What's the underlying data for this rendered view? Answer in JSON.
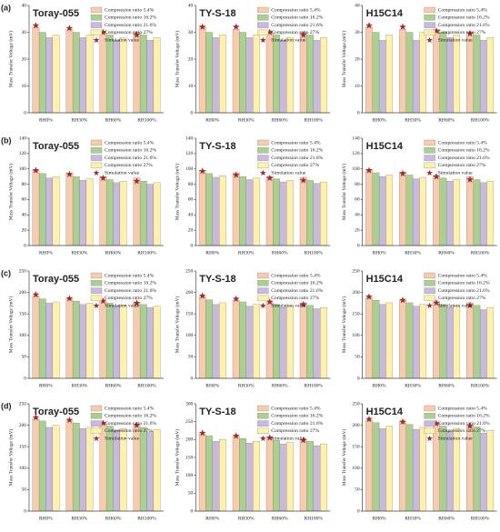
{
  "chart_data": [
    {
      "type": "bar",
      "panel_label": "(a)",
      "title": "Toray-055",
      "y_label": "Mass Transfer Voltage (mV)",
      "categories": [
        "RH0%",
        "RH30%",
        "RH60%",
        "RH100%"
      ],
      "ylim": [
        0,
        40
      ],
      "yticks": [
        0,
        10,
        20,
        30,
        40
      ],
      "series": [
        {
          "name": "Compression ratio 5.4%",
          "color": "#f8cbad",
          "values": [
            32,
            31,
            30,
            30
          ]
        },
        {
          "name": "Compression ratio 16.2%",
          "color": "#a9d18e",
          "values": [
            30,
            30,
            29,
            29
          ]
        },
        {
          "name": "Compression ratio 21.6%",
          "color": "#c9b8e0",
          "values": [
            28,
            28,
            27,
            27
          ]
        },
        {
          "name": "Compression ratio 27%",
          "color": "#fff2a8",
          "values": [
            29,
            29,
            28,
            28
          ]
        },
        {
          "name": "Simulation value",
          "color": "#a52a2a",
          "marker": "star",
          "values": [
            32.5,
            31.5,
            30,
            29
          ]
        }
      ]
    },
    {
      "type": "bar",
      "title": "TY-S-18",
      "y_label": "Mass Transfer Voltage (mV)",
      "categories": [
        "RH0%",
        "RH30%",
        "RH60%",
        "RH100%"
      ],
      "ylim": [
        0,
        40
      ],
      "yticks": [
        0,
        10,
        20,
        30,
        40
      ],
      "series": [
        {
          "name": "Compression ratio 5.4%",
          "color": "#f8cbad",
          "values": [
            32,
            31,
            30,
            30
          ]
        },
        {
          "name": "Compression ratio 16.2%",
          "color": "#a9d18e",
          "values": [
            30,
            30,
            29,
            29
          ]
        },
        {
          "name": "Compression ratio 21.6%",
          "color": "#c9b8e0",
          "values": [
            28,
            28,
            27,
            27
          ]
        },
        {
          "name": "Compression ratio 27%",
          "color": "#fff2a8",
          "values": [
            29,
            29,
            28,
            28
          ]
        },
        {
          "name": "Simulation value",
          "color": "#a52a2a",
          "marker": "star",
          "values": [
            32,
            32,
            30,
            29
          ]
        }
      ]
    },
    {
      "type": "bar",
      "title": "H15C14",
      "y_label": "Mass Transfer Voltage (mV)",
      "categories": [
        "RH0%",
        "RH30%",
        "RH60%",
        "RH100%"
      ],
      "ylim": [
        0,
        40
      ],
      "yticks": [
        0,
        10,
        20,
        30,
        40
      ],
      "series": [
        {
          "name": "Compression ratio 5.4%",
          "color": "#f8cbad",
          "values": [
            32,
            31,
            31,
            30
          ]
        },
        {
          "name": "Compression ratio 16.2%",
          "color": "#a9d18e",
          "values": [
            30,
            30,
            30,
            29
          ]
        },
        {
          "name": "Compression ratio 21.6%",
          "color": "#c9b8e0",
          "values": [
            27,
            27,
            28,
            27
          ]
        },
        {
          "name": "Compression ratio 27%",
          "color": "#fff2a8",
          "values": [
            29,
            30,
            29,
            28
          ]
        },
        {
          "name": "Simulation value",
          "color": "#a52a2a",
          "marker": "star",
          "values": [
            32.5,
            32,
            30.5,
            29.5
          ]
        }
      ]
    },
    {
      "type": "bar",
      "panel_label": "(b)",
      "title": "Toray-055",
      "y_label": "Mass Transfer Voltage (mV)",
      "categories": [
        "RH0%",
        "RH30%",
        "RH60%",
        "RH100%"
      ],
      "ylim": [
        0,
        140
      ],
      "yticks": [
        0,
        20,
        40,
        60,
        80,
        100,
        120,
        140
      ],
      "series": [
        {
          "name": "Compression ratio 5.4%",
          "color": "#f8cbad",
          "values": [
            98,
            94,
            90,
            88
          ]
        },
        {
          "name": "Compression ratio 16.2%",
          "color": "#a9d18e",
          "values": [
            94,
            90,
            86,
            84
          ]
        },
        {
          "name": "Compression ratio 21.6%",
          "color": "#c9b8e0",
          "values": [
            88,
            85,
            82,
            80
          ]
        },
        {
          "name": "Compression ratio 27%",
          "color": "#fff2a8",
          "values": [
            90,
            87,
            84,
            82
          ]
        },
        {
          "name": "Simulation value",
          "color": "#a52a2a",
          "marker": "star",
          "values": [
            98,
            93,
            88,
            84
          ]
        }
      ]
    },
    {
      "type": "bar",
      "title": "TY-S-18",
      "y_label": "Mass Transfer Voltage (mV)",
      "categories": [
        "RH0%",
        "RH30%",
        "RH60%",
        "RH100%"
      ],
      "ylim": [
        0,
        140
      ],
      "yticks": [
        0,
        20,
        40,
        60,
        80,
        100,
        120,
        140
      ],
      "series": [
        {
          "name": "Compression ratio 5.4%",
          "color": "#f8cbad",
          "values": [
            98,
            95,
            90,
            89
          ]
        },
        {
          "name": "Compression ratio 16.2%",
          "color": "#a9d18e",
          "values": [
            94,
            90,
            87,
            85
          ]
        },
        {
          "name": "Compression ratio 21.6%",
          "color": "#c9b8e0",
          "values": [
            89,
            86,
            83,
            81
          ]
        },
        {
          "name": "Compression ratio 27%",
          "color": "#fff2a8",
          "values": [
            91,
            88,
            85,
            83
          ]
        },
        {
          "name": "Simulation value",
          "color": "#a52a2a",
          "marker": "star",
          "values": [
            97,
            92,
            88,
            85
          ]
        }
      ]
    },
    {
      "type": "bar",
      "title": "H15C14",
      "y_label": "Mass Transfer Voltage (mV)",
      "categories": [
        "RH0%",
        "RH30%",
        "RH60%",
        "RH100%"
      ],
      "ylim": [
        0,
        140
      ],
      "yticks": [
        0,
        20,
        40,
        60,
        80,
        100,
        120,
        140
      ],
      "series": [
        {
          "name": "Compression ratio 5.4%",
          "color": "#f8cbad",
          "values": [
            99,
            96,
            91,
            90
          ]
        },
        {
          "name": "Compression ratio 16.2%",
          "color": "#a9d18e",
          "values": [
            95,
            92,
            88,
            86
          ]
        },
        {
          "name": "Compression ratio 21.6%",
          "color": "#c9b8e0",
          "values": [
            90,
            87,
            84,
            82
          ]
        },
        {
          "name": "Compression ratio 27%",
          "color": "#fff2a8",
          "values": [
            92,
            89,
            86,
            84
          ]
        },
        {
          "name": "Simulation value",
          "color": "#a52a2a",
          "marker": "star",
          "values": [
            98,
            94,
            90,
            86
          ]
        }
      ]
    },
    {
      "type": "bar",
      "panel_label": "(c)",
      "title": "Toray-055",
      "y_label": "Mass Transfer Voltage (mV)",
      "categories": [
        "RH0%",
        "RH30%",
        "RH60%",
        "RH100%"
      ],
      "ylim": [
        0,
        250
      ],
      "yticks": [
        0,
        50,
        100,
        150,
        200,
        250
      ],
      "series": [
        {
          "name": "Compression ratio 5.4%",
          "color": "#f8cbad",
          "values": [
            192,
            185,
            180,
            178
          ]
        },
        {
          "name": "Compression ratio 16.2%",
          "color": "#a9d18e",
          "values": [
            185,
            180,
            175,
            172
          ]
        },
        {
          "name": "Compression ratio 21.6%",
          "color": "#c9b8e0",
          "values": [
            175,
            172,
            168,
            165
          ]
        },
        {
          "name": "Compression ratio 27%",
          "color": "#fff2a8",
          "values": [
            178,
            175,
            170,
            168
          ]
        },
        {
          "name": "Simulation value",
          "color": "#a52a2a",
          "marker": "star",
          "values": [
            195,
            186,
            180,
            175
          ]
        }
      ]
    },
    {
      "type": "bar",
      "title": "TY-S-18",
      "y_label": "Mass Transfer Voltage (mV)",
      "categories": [
        "RH0%",
        "RH30%",
        "RH60%",
        "RH100%"
      ],
      "ylim": [
        0,
        250
      ],
      "yticks": [
        0,
        50,
        100,
        150,
        200,
        250
      ],
      "series": [
        {
          "name": "Compression ratio 5.4%",
          "color": "#f8cbad",
          "values": [
            190,
            182,
            178,
            176
          ]
        },
        {
          "name": "Compression ratio 16.2%",
          "color": "#a9d18e",
          "values": [
            183,
            178,
            172,
            170
          ]
        },
        {
          "name": "Compression ratio 21.6%",
          "color": "#c9b8e0",
          "values": [
            172,
            168,
            165,
            162
          ]
        },
        {
          "name": "Compression ratio 27%",
          "color": "#fff2a8",
          "values": [
            176,
            172,
            168,
            165
          ]
        },
        {
          "name": "Simulation value",
          "color": "#a52a2a",
          "marker": "star",
          "values": [
            192,
            185,
            178,
            172
          ]
        }
      ]
    },
    {
      "type": "bar",
      "title": "H15C14",
      "y_label": "Mass Transfer Voltage (mV)",
      "categories": [
        "RH0%",
        "RH30%",
        "RH60%",
        "RH100%"
      ],
      "ylim": [
        0,
        250
      ],
      "yticks": [
        0,
        50,
        100,
        150,
        200,
        250
      ],
      "series": [
        {
          "name": "Compression ratio 5.4%",
          "color": "#f8cbad",
          "values": [
            188,
            182,
            178,
            176
          ]
        },
        {
          "name": "Compression ratio 16.2%",
          "color": "#a9d18e",
          "values": [
            182,
            176,
            172,
            170
          ]
        },
        {
          "name": "Compression ratio 21.6%",
          "color": "#c9b8e0",
          "values": [
            172,
            168,
            165,
            160
          ]
        },
        {
          "name": "Compression ratio 27%",
          "color": "#fff2a8",
          "values": [
            176,
            172,
            168,
            165
          ]
        },
        {
          "name": "Simulation value",
          "color": "#a52a2a",
          "marker": "star",
          "values": [
            190,
            182,
            176,
            170
          ]
        }
      ]
    },
    {
      "type": "bar",
      "panel_label": "(d)",
      "title": "Toray-055",
      "y_label": "Mass Transfer Voltage (mV)",
      "categories": [
        "RH0%",
        "RH30%",
        "RH60%",
        "RH100%"
      ],
      "ylim": [
        0,
        250
      ],
      "yticks": [
        0,
        50,
        100,
        150,
        200,
        250
      ],
      "series": [
        {
          "name": "Compression ratio 5.4%",
          "color": "#f8cbad",
          "values": [
            215,
            210,
            205,
            200
          ]
        },
        {
          "name": "Compression ratio 16.2%",
          "color": "#a9d18e",
          "values": [
            210,
            205,
            198,
            195
          ]
        },
        {
          "name": "Compression ratio 21.6%",
          "color": "#c9b8e0",
          "values": [
            195,
            192,
            188,
            185
          ]
        },
        {
          "name": "Compression ratio 27%",
          "color": "#fff2a8",
          "values": [
            200,
            195,
            192,
            190
          ]
        },
        {
          "name": "Simulation value",
          "color": "#a52a2a",
          "marker": "star",
          "values": [
            218,
            212,
            205,
            200
          ]
        }
      ]
    },
    {
      "type": "bar",
      "title": "TY-S-18",
      "y_label": "Mass Transfer Voltage (mV)",
      "categories": [
        "RH0%",
        "RH30%",
        "RH60%",
        "RH100%"
      ],
      "ylim": [
        0,
        300
      ],
      "yticks": [
        0,
        50,
        100,
        150,
        200,
        250,
        300
      ],
      "series": [
        {
          "name": "Compression ratio 5.4%",
          "color": "#f8cbad",
          "values": [
            215,
            210,
            205,
            200
          ]
        },
        {
          "name": "Compression ratio 16.2%",
          "color": "#a9d18e",
          "values": [
            210,
            203,
            198,
            195
          ]
        },
        {
          "name": "Compression ratio 21.6%",
          "color": "#c9b8e0",
          "values": [
            195,
            190,
            188,
            183
          ]
        },
        {
          "name": "Compression ratio 27%",
          "color": "#fff2a8",
          "values": [
            200,
            195,
            192,
            188
          ]
        },
        {
          "name": "Simulation value",
          "color": "#a52a2a",
          "marker": "star",
          "values": [
            218,
            210,
            205,
            198
          ]
        }
      ]
    },
    {
      "type": "bar",
      "title": "H15C14",
      "y_label": "Mass Transfer Voltage (mV)",
      "categories": [
        "RH0%",
        "RH30%",
        "RH60%",
        "RH100%"
      ],
      "ylim": [
        0,
        250
      ],
      "yticks": [
        0,
        50,
        100,
        150,
        200,
        250
      ],
      "series": [
        {
          "name": "Compression ratio 5.4%",
          "color": "#f8cbad",
          "values": [
            212,
            208,
            205,
            200
          ]
        },
        {
          "name": "Compression ratio 16.2%",
          "color": "#a9d18e",
          "values": [
            206,
            202,
            198,
            196
          ]
        },
        {
          "name": "Compression ratio 21.6%",
          "color": "#c9b8e0",
          "values": [
            192,
            190,
            186,
            182
          ]
        },
        {
          "name": "Compression ratio 27%",
          "color": "#fff2a8",
          "values": [
            198,
            195,
            192,
            188
          ]
        },
        {
          "name": "Simulation value",
          "color": "#a52a2a",
          "marker": "star",
          "values": [
            214,
            208,
            204,
            198
          ]
        }
      ]
    }
  ]
}
